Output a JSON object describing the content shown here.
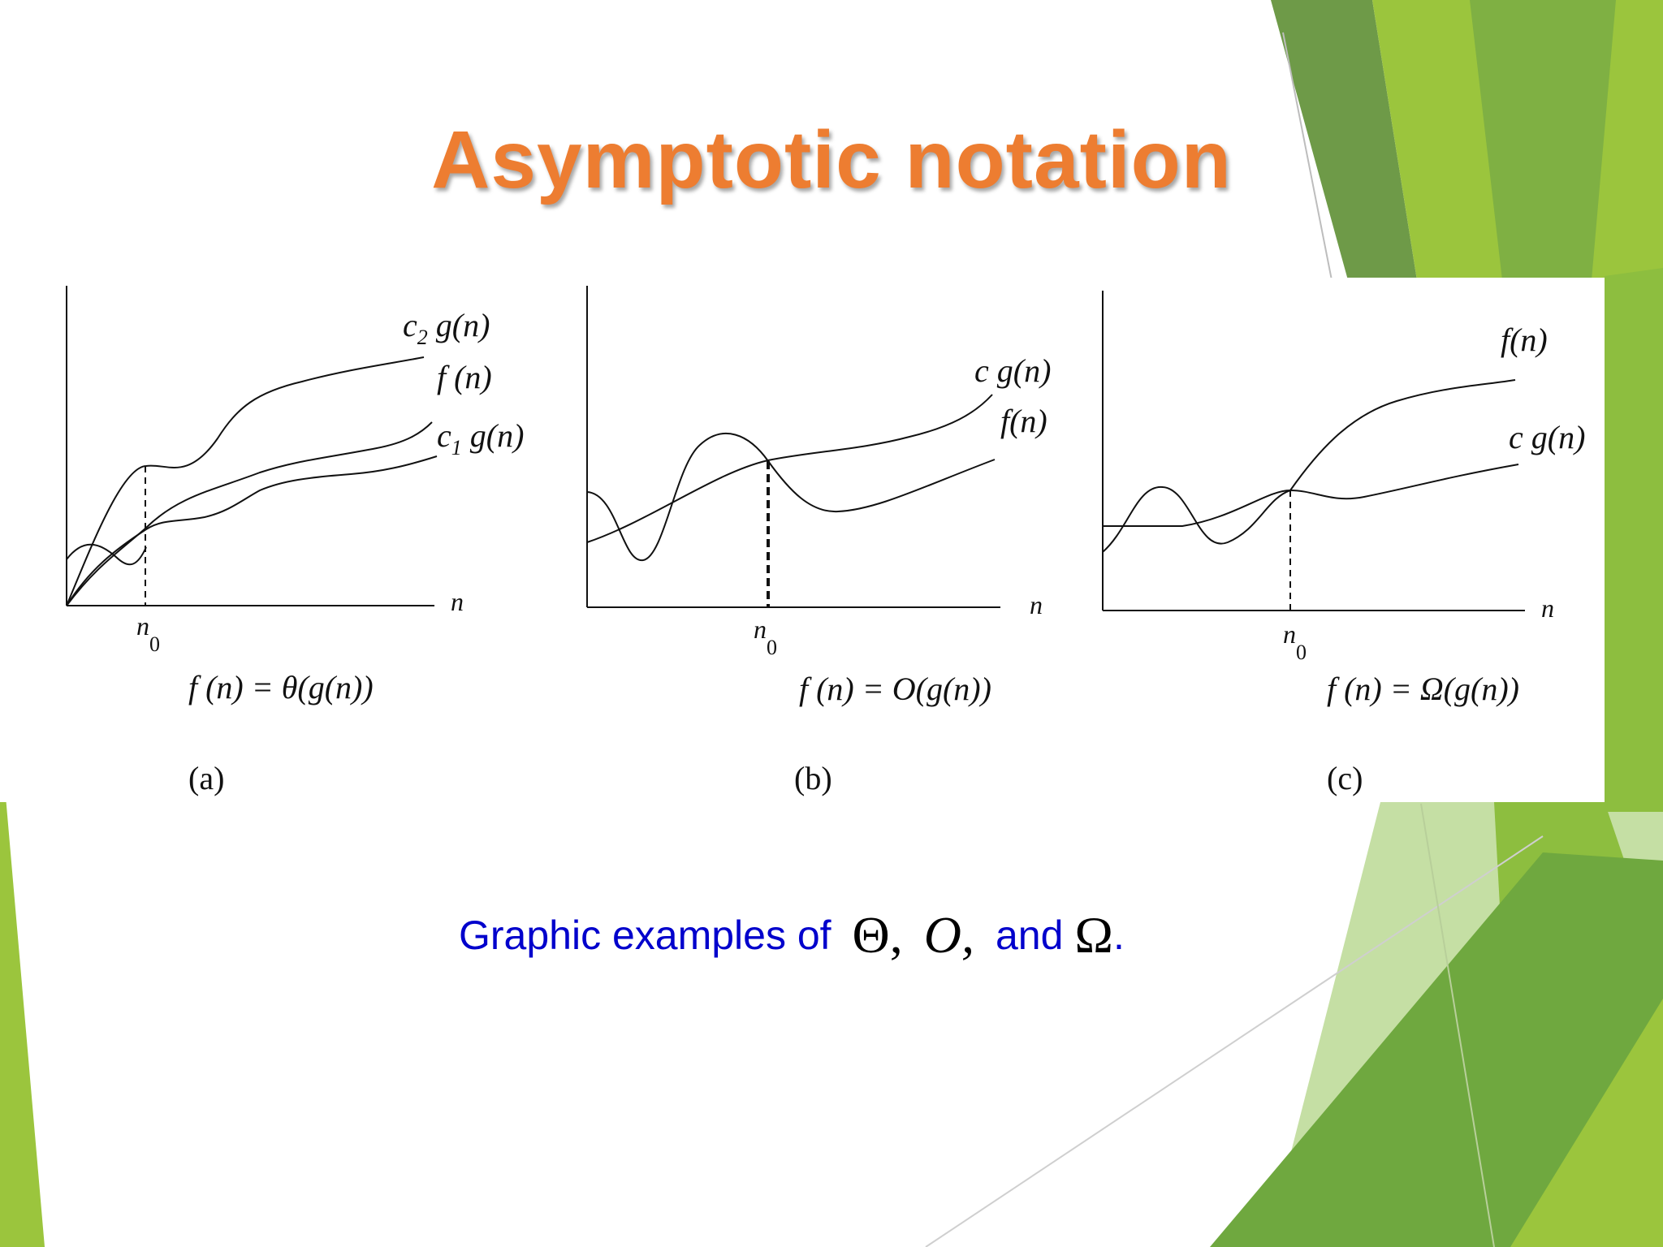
{
  "slide": {
    "title": "Asymptotic notation",
    "accent_color": "#ED7D31",
    "decoration_colors": [
      "#9BC53D",
      "#6E9A48",
      "#7CB342",
      "#C5DFA4"
    ]
  },
  "figure": {
    "panels": [
      {
        "label": "(a)",
        "x_axis_label": "n",
        "threshold_label": "n",
        "threshold_subscript": "0",
        "curves": [
          {
            "name_prefix": "c",
            "name_sub": "2",
            "name_suffix": " g(n)"
          },
          {
            "name_prefix": "f (n)",
            "name_sub": "",
            "name_suffix": ""
          },
          {
            "name_prefix": "c",
            "name_sub": "1",
            "name_suffix": " g(n)"
          }
        ],
        "formula": "f (n) = θ(g(n))"
      },
      {
        "label": "(b)",
        "x_axis_label": "n",
        "threshold_label": "n",
        "threshold_subscript": "0",
        "curves": [
          {
            "name_prefix": "c g(n)",
            "name_sub": "",
            "name_suffix": ""
          },
          {
            "name_prefix": "f(n)",
            "name_sub": "",
            "name_suffix": ""
          }
        ],
        "formula": "f (n) = O(g(n))"
      },
      {
        "label": "(c)",
        "x_axis_label": "n",
        "threshold_label": "n",
        "threshold_subscript": "0",
        "curves": [
          {
            "name_prefix": "f(n)",
            "name_sub": "",
            "name_suffix": ""
          },
          {
            "name_prefix": "c g(n)",
            "name_sub": "",
            "name_suffix": ""
          }
        ],
        "formula": "f (n) = Ω(g(n))"
      }
    ]
  },
  "caption": {
    "text": "Graphic examples of",
    "theta": "Θ,",
    "big_o": "O,",
    "and_text": "and",
    "omega": "Ω",
    "period": ".",
    "color": "#0000CC"
  }
}
